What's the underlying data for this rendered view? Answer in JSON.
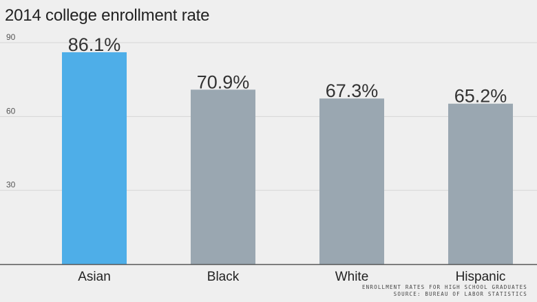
{
  "chart_data": {
    "type": "bar",
    "title": "2014 college enrollment rate",
    "categories": [
      "Asian",
      "Black",
      "White",
      "Hispanic"
    ],
    "values": [
      86.1,
      70.9,
      67.3,
      65.2
    ],
    "data_labels": [
      "86.1%",
      "70.9%",
      "67.3%",
      "65.2%"
    ],
    "yticks": [
      30,
      60,
      90
    ],
    "ylim": [
      0,
      90
    ],
    "grid": true,
    "highlight_index": 0,
    "colors": {
      "highlight": "#4eaee8",
      "bar": "#9aa7b1",
      "grid": "#d6d6d6",
      "axis": "#555555"
    }
  },
  "footnote": {
    "line1": "ENROLLMENT RATES FOR HIGH SCHOOL GRADUATES",
    "line2": "SOURCE: BUREAU OF LABOR STATISTICS"
  }
}
